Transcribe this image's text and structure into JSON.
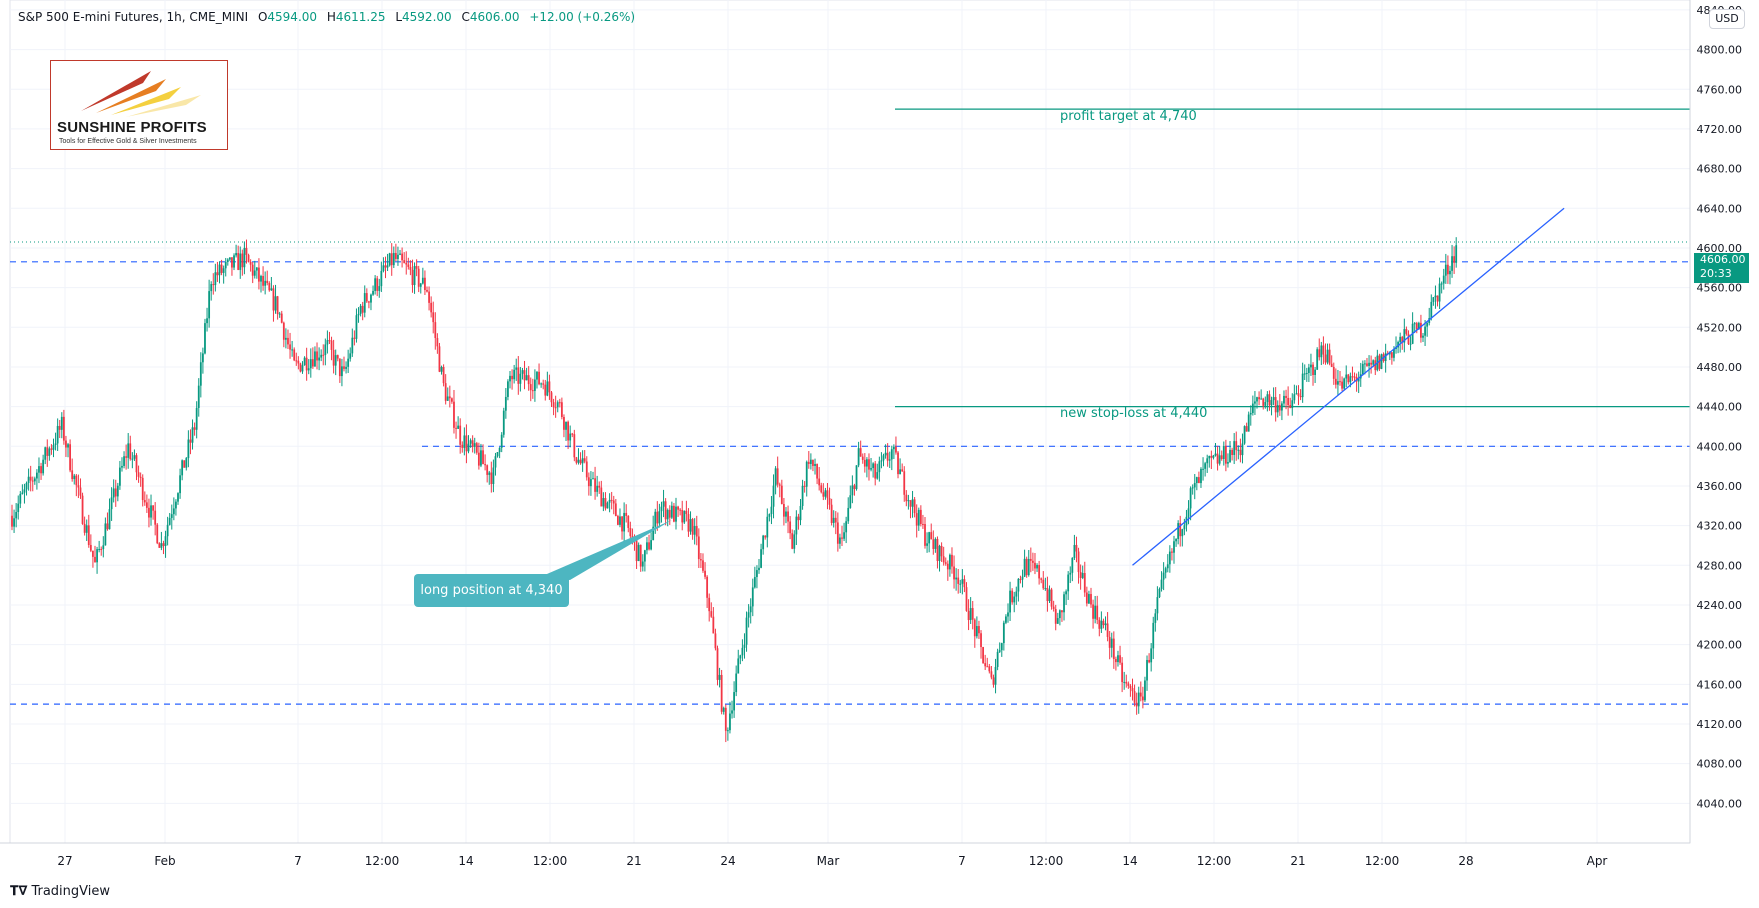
{
  "header": {
    "symbol": "S&P 500 E-mini Futures, 1h, CME_MINI",
    "open_label": "O",
    "open": "4594.00",
    "high_label": "H",
    "high": "4611.25",
    "low_label": "L",
    "low": "4592.00",
    "close_label": "C",
    "close": "4606.00",
    "change": "+12.00 (+0.26%)"
  },
  "currency": "USD",
  "logo": {
    "name": "SUNSHINE PROFITS",
    "tagline": "Tools for Effective Gold & Silver Investments"
  },
  "last_price": {
    "value": "4606.00",
    "countdown": "20:33"
  },
  "annotations": {
    "profit_target": "profit target at 4,740",
    "stop_loss": "new stop-loss at 4,440",
    "long_position": "long position at 4,340"
  },
  "footer": {
    "brand": "TradingView"
  },
  "colors": {
    "up": "#089981",
    "down": "#f23645",
    "level": "#2962ff",
    "target": "#089981",
    "callout": "#4db6c1"
  },
  "chart_data": {
    "type": "candlestick",
    "title": "S&P 500 E-mini Futures, 1h, CME_MINI",
    "ylim": [
      4000,
      4850
    ],
    "y_ticks": [
      4040,
      4080,
      4120,
      4160,
      4200,
      4240,
      4280,
      4320,
      4360,
      4400,
      4440,
      4480,
      4520,
      4560,
      4600,
      4640,
      4680,
      4720,
      4760,
      4800,
      4840
    ],
    "x_tick_labels": [
      "27",
      "Feb",
      "7",
      "12:00",
      "14",
      "12:00",
      "21",
      "24",
      "Mar",
      "7",
      "12:00",
      "14",
      "12:00",
      "21",
      "12:00",
      "28",
      "Apr"
    ],
    "path_keypoints": [
      [
        0,
        4330
      ],
      [
        3,
        4420
      ],
      [
        5,
        4280
      ],
      [
        7,
        4400
      ],
      [
        9,
        4300
      ],
      [
        11,
        4420
      ],
      [
        12,
        4570
      ],
      [
        14,
        4590
      ],
      [
        16,
        4540
      ],
      [
        17,
        4480
      ],
      [
        19,
        4500
      ],
      [
        20,
        4470
      ],
      [
        21,
        4540
      ],
      [
        23,
        4590
      ],
      [
        25,
        4560
      ],
      [
        26,
        4460
      ],
      [
        27,
        4410
      ],
      [
        29,
        4370
      ],
      [
        30,
        4470
      ],
      [
        32,
        4465
      ],
      [
        33,
        4440
      ],
      [
        34,
        4390
      ],
      [
        35,
        4360
      ],
      [
        37,
        4320
      ],
      [
        38,
        4280
      ],
      [
        39,
        4340
      ],
      [
        41,
        4320
      ],
      [
        42,
        4240
      ],
      [
        43,
        4110
      ],
      [
        44,
        4200
      ],
      [
        46,
        4370
      ],
      [
        47,
        4300
      ],
      [
        48,
        4390
      ],
      [
        50,
        4300
      ],
      [
        51,
        4390
      ],
      [
        52,
        4370
      ],
      [
        53,
        4395
      ],
      [
        54,
        4350
      ],
      [
        55,
        4310
      ],
      [
        57,
        4270
      ],
      [
        59,
        4160
      ],
      [
        60,
        4240
      ],
      [
        61,
        4280
      ],
      [
        62,
        4270
      ],
      [
        63,
        4220
      ],
      [
        64,
        4290
      ],
      [
        65,
        4240
      ],
      [
        66,
        4210
      ],
      [
        67,
        4160
      ],
      [
        68,
        4140
      ],
      [
        69,
        4240
      ],
      [
        70,
        4300
      ],
      [
        71,
        4350
      ],
      [
        72,
        4380
      ],
      [
        74,
        4400
      ],
      [
        75,
        4450
      ],
      [
        77,
        4440
      ],
      [
        79,
        4500
      ],
      [
        80,
        4460
      ],
      [
        82,
        4480
      ],
      [
        84,
        4510
      ],
      [
        85,
        4520
      ],
      [
        86,
        4560
      ],
      [
        87,
        4600
      ]
    ],
    "horizontal_levels": [
      {
        "price": 4740,
        "style": "solid",
        "label_key": "profit_target"
      },
      {
        "price": 4440,
        "style": "solid",
        "label_key": "stop_loss"
      },
      {
        "price": 4586,
        "style": "dashed"
      },
      {
        "price": 4400,
        "style": "dashed"
      },
      {
        "price": 4140,
        "style": "dashed"
      },
      {
        "price": 4606,
        "style": "dotted"
      }
    ],
    "trend_line": {
      "from": {
        "bar": 67.5,
        "price": 4280
      },
      "to": {
        "bar": 93.5,
        "price": 4640
      }
    }
  }
}
